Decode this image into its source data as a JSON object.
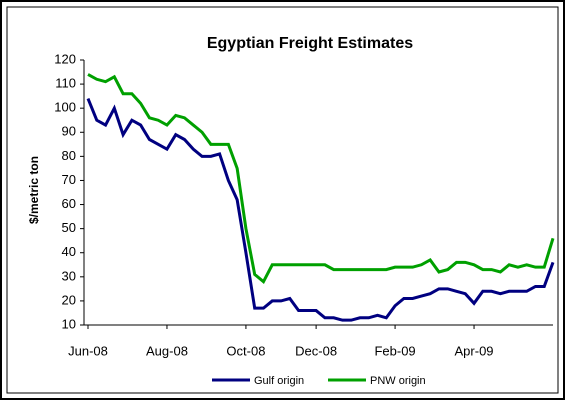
{
  "chart_data": {
    "type": "line",
    "title": "Egyptian Freight Estimates",
    "y_label": "$/metric ton",
    "categories": [
      "Jun-08",
      null,
      null,
      null,
      null,
      null,
      null,
      null,
      null,
      "Aug-08",
      null,
      null,
      null,
      null,
      null,
      null,
      null,
      null,
      "Oct-08",
      null,
      null,
      null,
      null,
      null,
      null,
      null,
      "Dec-08",
      null,
      null,
      null,
      null,
      null,
      null,
      null,
      null,
      "Feb-09",
      null,
      null,
      null,
      null,
      null,
      null,
      null,
      null,
      "Apr-09",
      null,
      null,
      null,
      null,
      null,
      null,
      null,
      null,
      null
    ],
    "series": [
      {
        "name": "Gulf origin",
        "color": "#000080",
        "values": [
          104,
          95,
          93,
          100,
          89,
          95,
          93,
          87,
          85,
          83,
          89,
          87,
          83,
          80,
          80,
          81,
          70,
          62,
          40,
          17,
          17,
          20,
          20,
          21,
          16,
          16,
          16,
          13,
          13,
          12,
          12,
          13,
          13,
          14,
          13,
          18,
          21,
          21,
          22,
          23,
          25,
          25,
          24,
          23,
          19,
          24,
          24,
          23,
          24,
          24,
          24,
          26,
          26,
          36
        ]
      },
      {
        "name": "PNW origin",
        "color": "#00a000",
        "values": [
          114,
          112,
          111,
          113,
          106,
          106,
          102,
          96,
          95,
          93,
          97,
          96,
          93,
          90,
          85,
          85,
          85,
          75,
          50,
          31,
          28,
          35,
          35,
          35,
          35,
          35,
          35,
          35,
          33,
          33,
          33,
          33,
          33,
          33,
          33,
          34,
          34,
          34,
          35,
          37,
          32,
          33,
          36,
          36,
          35,
          33,
          33,
          32,
          35,
          34,
          35,
          34,
          34,
          46
        ]
      }
    ],
    "ylim": [
      10,
      120
    ],
    "yticks": [
      10,
      20,
      30,
      40,
      50,
      60,
      70,
      80,
      90,
      100,
      110,
      120
    ],
    "legend": "bottom"
  }
}
